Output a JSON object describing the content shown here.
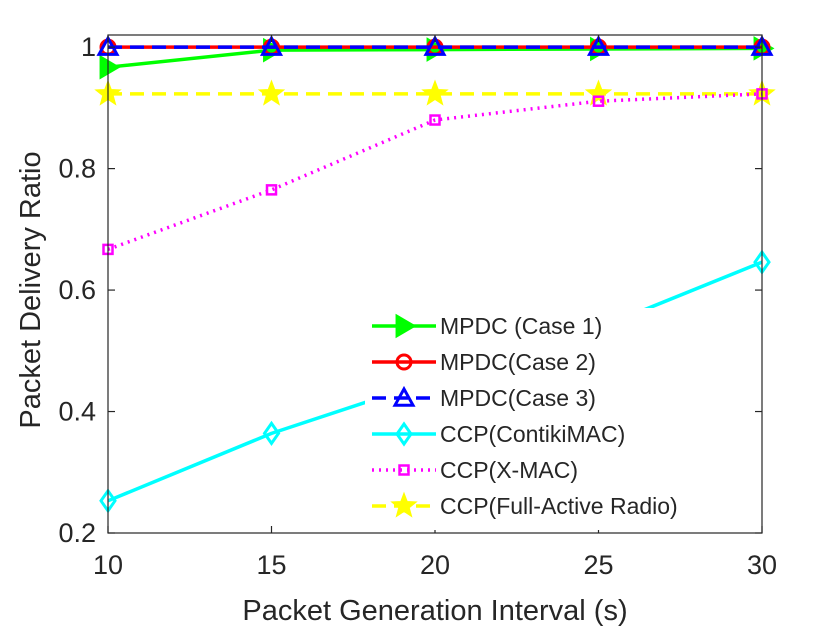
{
  "chart_data": {
    "type": "line",
    "xlabel": "Packet Generation Interval (s)",
    "ylabel": "Packet Delivery Ratio",
    "xlim": [
      10,
      30
    ],
    "ylim": [
      0.2,
      1.02
    ],
    "xticks": [
      10,
      15,
      20,
      25,
      30
    ],
    "yticks": [
      0.2,
      0.4,
      0.6,
      0.8,
      1
    ],
    "ytick_labels": [
      "0.2",
      "0.4",
      "0.6",
      "0.8",
      "1"
    ],
    "grid": false,
    "legend_position": "bottom-right",
    "x": [
      10,
      15,
      20,
      25,
      30
    ],
    "series": [
      {
        "name": "MPDC (Case 1)",
        "values": [
          0.967,
          0.995,
          0.996,
          0.997,
          0.998
        ],
        "color": "#00ff00",
        "dash": "solid",
        "marker": "triangle-right"
      },
      {
        "name": "MPDC(Case 2)",
        "values": [
          1,
          1,
          1,
          1,
          1
        ],
        "color": "#ff0000",
        "dash": "solid",
        "marker": "circle"
      },
      {
        "name": "MPDC(Case 3)",
        "values": [
          1,
          1,
          1,
          1,
          1
        ],
        "color": "#0000ff",
        "dash": "dashed",
        "marker": "triangle-up"
      },
      {
        "name": "CCP(ContikiMAC)",
        "values": [
          0.253,
          0.364,
          0.453,
          0.537,
          0.646
        ],
        "color": "#00ffff",
        "dash": "solid",
        "marker": "diamond"
      },
      {
        "name": "CCP(X-MAC)",
        "values": [
          0.667,
          0.765,
          0.88,
          0.911,
          0.923
        ],
        "color": "#ff00ff",
        "dash": "dotted",
        "marker": "square"
      },
      {
        "name": "CCP(Full-Active Radio)",
        "values": [
          0.923,
          0.923,
          0.923,
          0.923,
          0.923
        ],
        "color": "#ffff00",
        "dash": "dashed",
        "marker": "star"
      }
    ]
  }
}
